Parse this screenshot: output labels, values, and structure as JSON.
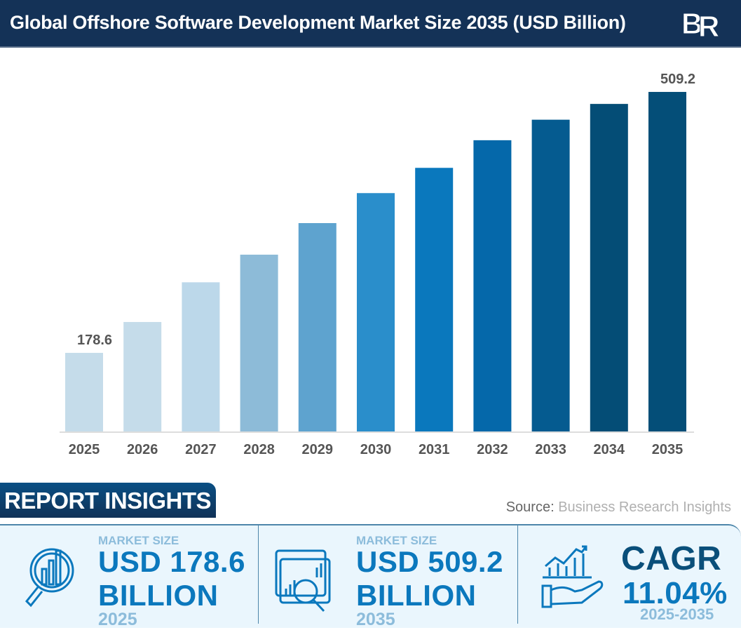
{
  "header": {
    "title": "Global Offshore Software Development Market Size 2035 (USD Billion)",
    "logo_text": "BRI"
  },
  "chart_data": {
    "type": "bar",
    "title": "Global Offshore Software Development Market Size 2035 (USD Billion)",
    "categories": [
      "2025",
      "2026",
      "2027",
      "2028",
      "2029",
      "2030",
      "2031",
      "2032",
      "2033",
      "2034",
      "2035"
    ],
    "values": [
      178.6,
      217.7,
      268,
      303,
      343,
      381,
      413,
      448,
      474,
      494,
      509.2
    ],
    "data_labels": {
      "2025": "178.6",
      "2035": "509.2"
    },
    "ylim": [
      79,
      540
    ],
    "grid": false,
    "xlabel": "",
    "ylabel": "",
    "colors": [
      "#c5dcea",
      "#c5dcea",
      "#bcd8ea",
      "#8dbbd8",
      "#5ea3cf",
      "#2a8ecb",
      "#0a78bd",
      "#0568aa",
      "#055b90",
      "#044d76",
      "#044e78"
    ]
  },
  "insights": {
    "heading": "REPORT INSIGHTS",
    "source_label": "Source:",
    "source_name": "Business Research Insights",
    "cards": [
      {
        "label": "MARKET SIZE",
        "value": "USD 178.6",
        "unit": "BILLION",
        "year": "2025",
        "icon": "magnifier-chart-icon"
      },
      {
        "label": "MARKET SIZE",
        "value": "USD 509.2",
        "unit": "BILLION",
        "year": "2035",
        "icon": "dashboard-search-icon"
      },
      {
        "label": "CAGR",
        "value": "11.04%",
        "year": "2025-2035",
        "icon": "hand-growth-chart-icon"
      }
    ]
  }
}
